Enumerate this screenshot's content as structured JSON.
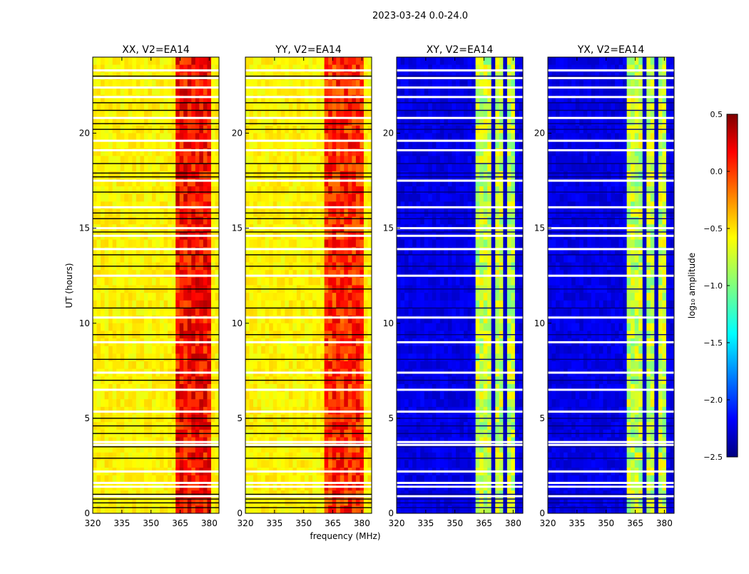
{
  "chart_data": {
    "type": "heatmap",
    "title": "2023-03-24 0.0-24.0",
    "xlabel": "frequency (MHz)",
    "ylabel": "UT (hours)",
    "xlim": [
      320,
      385
    ],
    "ylim": [
      0,
      24
    ],
    "xticks": [
      320,
      335,
      350,
      365,
      380
    ],
    "yticks": [
      0,
      5,
      10,
      15,
      20
    ],
    "colormap": "jet",
    "panels": [
      {
        "title": "XX, V2=EA14",
        "base": -0.6,
        "band": [
          362,
          381
        ],
        "band_value": 0.1,
        "show_ylabel": true
      },
      {
        "title": "YY, V2=EA14",
        "base": -0.6,
        "band": [
          361,
          381
        ],
        "band_value": 0.0,
        "show_ylabel": false
      },
      {
        "title": "XY, V2=EA14",
        "base": -2.2,
        "band": [
          361,
          380
        ],
        "band_value": -0.8,
        "show_ylabel": false
      },
      {
        "title": "YX, V2=EA14",
        "base": -2.2,
        "band": [
          361,
          380
        ],
        "band_value": -0.8,
        "show_ylabel": false
      }
    ],
    "flagged_hours_white": [
      0.9,
      1.4,
      1.6,
      2.2,
      3.6,
      3.75,
      5.35,
      6.5,
      7.4,
      9.0,
      10.3,
      12.5,
      13.9,
      14.6,
      15.0,
      16.1,
      17.5,
      19.1,
      19.6,
      20.8,
      21.9,
      22.4,
      22.9,
      23.3
    ],
    "flagged_hours_black": [
      0.3,
      0.55,
      0.75,
      1.0,
      2.9,
      3.5,
      4.2,
      4.6,
      5.0,
      7.0,
      8.1,
      9.4,
      10.8,
      11.8,
      13.0,
      13.6,
      14.8,
      15.5,
      15.8,
      16.9,
      17.7,
      17.9,
      18.4,
      20.2,
      20.5,
      21.2,
      21.6,
      23.0
    ],
    "colorbar": {
      "label": "log₁₀ amplitude",
      "range": [
        -2.5,
        0.5
      ],
      "ticks": [
        "0.5",
        "0.0",
        "−0.5",
        "−1.0",
        "−1.5",
        "−2.0",
        "−2.5"
      ],
      "tick_values": [
        0.5,
        0.0,
        -0.5,
        -1.0,
        -1.5,
        -2.0,
        -2.5
      ]
    }
  }
}
